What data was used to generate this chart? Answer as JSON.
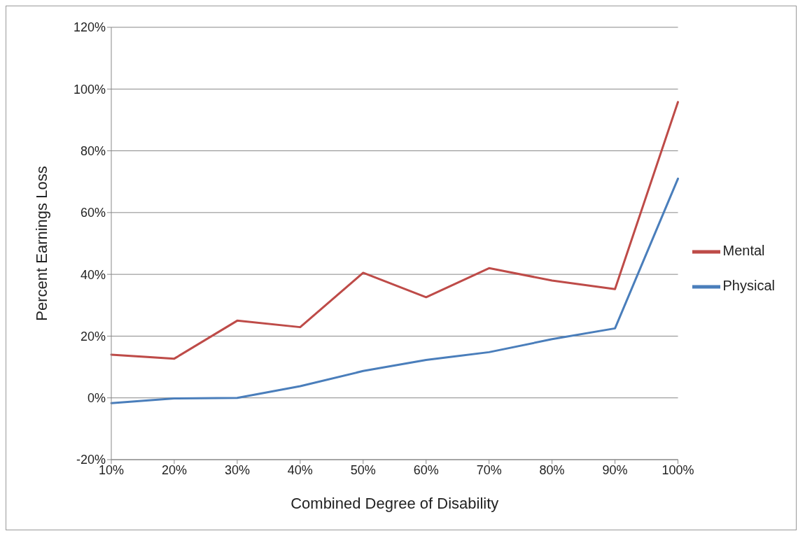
{
  "chart_data": {
    "type": "line",
    "xlabel": "Combined Degree of Disability",
    "ylabel": "Percent Earnings Loss",
    "categories": [
      "10%",
      "20%",
      "30%",
      "40%",
      "50%",
      "60%",
      "70%",
      "80%",
      "90%",
      "100%"
    ],
    "series": [
      {
        "name": "Physical",
        "color": "#4a7ebb",
        "values": [
          -1.7,
          -0.2,
          0,
          3.8,
          8.7,
          12.3,
          14.8,
          19,
          22.5,
          71
        ]
      },
      {
        "name": "Mental",
        "color": "#be4b48",
        "values": [
          14,
          12.7,
          25,
          22.9,
          40.5,
          32.6,
          42,
          38,
          35.2,
          95.8
        ]
      }
    ],
    "ylim": [
      -20,
      120
    ],
    "yticks": [
      {
        "value": -20,
        "label": "-20%"
      },
      {
        "value": 0,
        "label": "0%"
      },
      {
        "value": 20,
        "label": "20%"
      },
      {
        "value": 40,
        "label": "40%"
      },
      {
        "value": 60,
        "label": "60%"
      },
      {
        "value": 80,
        "label": "80%"
      },
      {
        "value": 100,
        "label": "100%"
      },
      {
        "value": 120,
        "label": "120%"
      }
    ],
    "grid": "y",
    "legend": "right",
    "marker": "none",
    "line_style": "solid"
  }
}
